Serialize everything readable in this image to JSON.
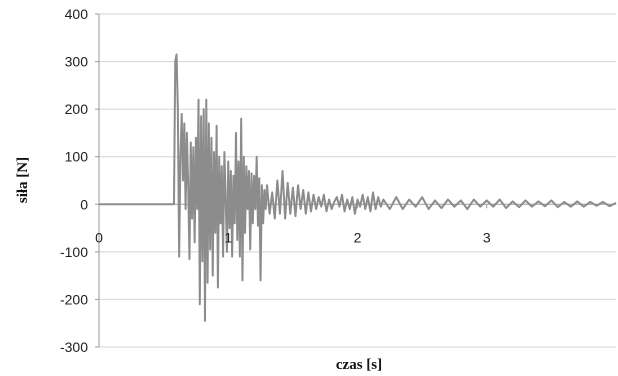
{
  "chart_data": {
    "type": "line",
    "title": "",
    "xlabel": "czas [s]",
    "ylabel": "siła [N]",
    "xlim": [
      0,
      4
    ],
    "ylim": [
      -300,
      400
    ],
    "y_ticks": [
      400,
      300,
      200,
      100,
      0,
      -100,
      -200,
      -300
    ],
    "x_ticks": [
      0,
      1,
      2,
      3
    ],
    "y_tick_labels": [
      "400",
      "300",
      "200",
      "100",
      "0",
      "-100",
      "-200",
      "-300"
    ],
    "x_tick_labels": [
      "0",
      "1",
      "2",
      "3"
    ],
    "grid": "horizontal",
    "legend": "none",
    "series_color": "#8c8c8c",
    "series": [
      {
        "values": [
          [
            0.0,
            0
          ],
          [
            0.55,
            0
          ],
          [
            0.58,
            0
          ],
          [
            0.59,
            300
          ],
          [
            0.6,
            315
          ],
          [
            0.61,
            200
          ],
          [
            0.62,
            -110
          ],
          [
            0.63,
            100
          ],
          [
            0.64,
            190
          ],
          [
            0.65,
            50
          ],
          [
            0.66,
            170
          ],
          [
            0.67,
            -10
          ],
          [
            0.68,
            150
          ],
          [
            0.69,
            40
          ],
          [
            0.7,
            -115
          ],
          [
            0.71,
            130
          ],
          [
            0.72,
            -30
          ],
          [
            0.73,
            120
          ],
          [
            0.74,
            -80
          ],
          [
            0.75,
            140
          ],
          [
            0.76,
            -10
          ],
          [
            0.77,
            220
          ],
          [
            0.78,
            -210
          ],
          [
            0.79,
            185
          ],
          [
            0.8,
            -120
          ],
          [
            0.81,
            200
          ],
          [
            0.82,
            -245
          ],
          [
            0.83,
            220
          ],
          [
            0.84,
            -165
          ],
          [
            0.85,
            170
          ],
          [
            0.86,
            -95
          ],
          [
            0.87,
            140
          ],
          [
            0.88,
            -150
          ],
          [
            0.89,
            110
          ],
          [
            0.9,
            -60
          ],
          [
            0.91,
            165
          ],
          [
            0.92,
            -175
          ],
          [
            0.93,
            100
          ],
          [
            0.94,
            -40
          ],
          [
            0.95,
            80
          ],
          [
            0.96,
            -110
          ],
          [
            0.97,
            110
          ],
          [
            0.98,
            10
          ],
          [
            0.99,
            -100
          ],
          [
            1.0,
            90
          ],
          [
            1.01,
            -50
          ],
          [
            1.02,
            70
          ],
          [
            1.03,
            -110
          ],
          [
            1.04,
            60
          ],
          [
            1.05,
            -40
          ],
          [
            1.06,
            150
          ],
          [
            1.07,
            -75
          ],
          [
            1.08,
            90
          ],
          [
            1.09,
            -110
          ],
          [
            1.1,
            180
          ],
          [
            1.11,
            -160
          ],
          [
            1.12,
            100
          ],
          [
            1.13,
            -60
          ],
          [
            1.14,
            80
          ],
          [
            1.15,
            -10
          ],
          [
            1.16,
            70
          ],
          [
            1.17,
            -95
          ],
          [
            1.18,
            65
          ],
          [
            1.19,
            -40
          ],
          [
            1.2,
            60
          ],
          [
            1.21,
            -10
          ],
          [
            1.22,
            100
          ],
          [
            1.23,
            -45
          ],
          [
            1.24,
            55
          ],
          [
            1.25,
            -160
          ],
          [
            1.26,
            40
          ],
          [
            1.27,
            -40
          ],
          [
            1.28,
            30
          ],
          [
            1.29,
            -10
          ],
          [
            1.3,
            40
          ],
          [
            1.32,
            -20
          ],
          [
            1.34,
            25
          ],
          [
            1.36,
            -30
          ],
          [
            1.38,
            50
          ],
          [
            1.4,
            -20
          ],
          [
            1.42,
            70
          ],
          [
            1.44,
            -30
          ],
          [
            1.46,
            45
          ],
          [
            1.48,
            -20
          ],
          [
            1.5,
            35
          ],
          [
            1.52,
            -25
          ],
          [
            1.54,
            40
          ],
          [
            1.56,
            -10
          ],
          [
            1.58,
            30
          ],
          [
            1.6,
            -20
          ],
          [
            1.62,
            25
          ],
          [
            1.64,
            -15
          ],
          [
            1.66,
            20
          ],
          [
            1.68,
            -10
          ],
          [
            1.7,
            15
          ],
          [
            1.72,
            -5
          ],
          [
            1.74,
            20
          ],
          [
            1.76,
            -15
          ],
          [
            1.78,
            10
          ],
          [
            1.8,
            -10
          ],
          [
            1.82,
            5
          ],
          [
            1.84,
            15
          ],
          [
            1.86,
            -5
          ],
          [
            1.88,
            20
          ],
          [
            1.9,
            -15
          ],
          [
            1.92,
            10
          ],
          [
            1.94,
            -10
          ],
          [
            1.96,
            15
          ],
          [
            1.98,
            -20
          ],
          [
            2.0,
            10
          ],
          [
            2.02,
            -5
          ],
          [
            2.04,
            20
          ],
          [
            2.06,
            -10
          ],
          [
            2.08,
            15
          ],
          [
            2.1,
            -15
          ],
          [
            2.12,
            25
          ],
          [
            2.14,
            -10
          ],
          [
            2.16,
            15
          ],
          [
            2.18,
            -5
          ],
          [
            2.2,
            10
          ],
          [
            2.25,
            -10
          ],
          [
            2.3,
            15
          ],
          [
            2.35,
            -10
          ],
          [
            2.4,
            10
          ],
          [
            2.45,
            -5
          ],
          [
            2.5,
            15
          ],
          [
            2.55,
            -10
          ],
          [
            2.6,
            8
          ],
          [
            2.65,
            -8
          ],
          [
            2.7,
            10
          ],
          [
            2.75,
            -5
          ],
          [
            2.8,
            8
          ],
          [
            2.85,
            -10
          ],
          [
            2.9,
            10
          ],
          [
            2.95,
            -5
          ],
          [
            3.0,
            8
          ],
          [
            3.05,
            -5
          ],
          [
            3.1,
            10
          ],
          [
            3.15,
            -8
          ],
          [
            3.2,
            6
          ],
          [
            3.25,
            -6
          ],
          [
            3.3,
            8
          ],
          [
            3.35,
            -5
          ],
          [
            3.4,
            6
          ],
          [
            3.45,
            -4
          ],
          [
            3.5,
            8
          ],
          [
            3.55,
            -6
          ],
          [
            3.6,
            5
          ],
          [
            3.65,
            -5
          ],
          [
            3.7,
            6
          ],
          [
            3.75,
            -5
          ],
          [
            3.8,
            5
          ],
          [
            3.85,
            -3
          ],
          [
            3.9,
            5
          ],
          [
            3.95,
            -4
          ],
          [
            4.0,
            3
          ]
        ]
      }
    ]
  }
}
